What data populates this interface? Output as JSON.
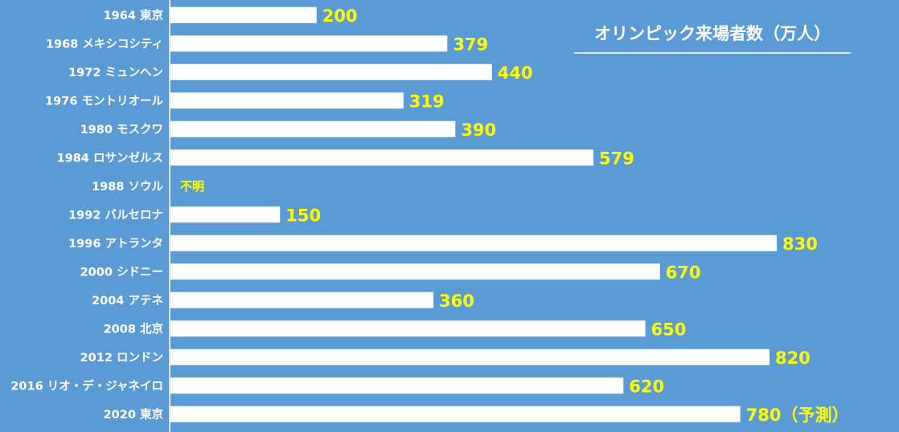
{
  "chart_data": {
    "type": "bar",
    "orientation": "horizontal",
    "title": "オリンピック来場者数（万人）",
    "categories": [
      "1964 東京",
      "1968 メキシコシティ",
      "1972 ミュンヘン",
      "1976 モントリオール",
      "1980 モスクワ",
      "1984 ロサンゼルス",
      "1988 ソウル",
      "1992 バルセロナ",
      "1996 アトランタ",
      "2000 シドニー",
      "2004 アテネ",
      "2008 北京",
      "2012 ロンドン",
      "2016 リオ・デ・ジャネイロ",
      "2020 東京"
    ],
    "values": [
      200,
      379,
      440,
      319,
      390,
      579,
      null,
      150,
      830,
      670,
      360,
      650,
      820,
      620,
      780
    ],
    "data_labels": [
      "200",
      "379",
      "440",
      "319",
      "390",
      "579",
      "不明",
      "150",
      "830",
      "670",
      "360",
      "650",
      "820",
      "620",
      "780（予測）"
    ],
    "xlim": [
      0,
      900
    ],
    "grid": false,
    "legend": "none"
  },
  "colors": {
    "background": "#5b9bd5",
    "bar": "#ffffff",
    "value_label": "#ffff00",
    "category_label": "#ffffff",
    "title": "#ffffff",
    "axis_line": "#ffffff"
  }
}
